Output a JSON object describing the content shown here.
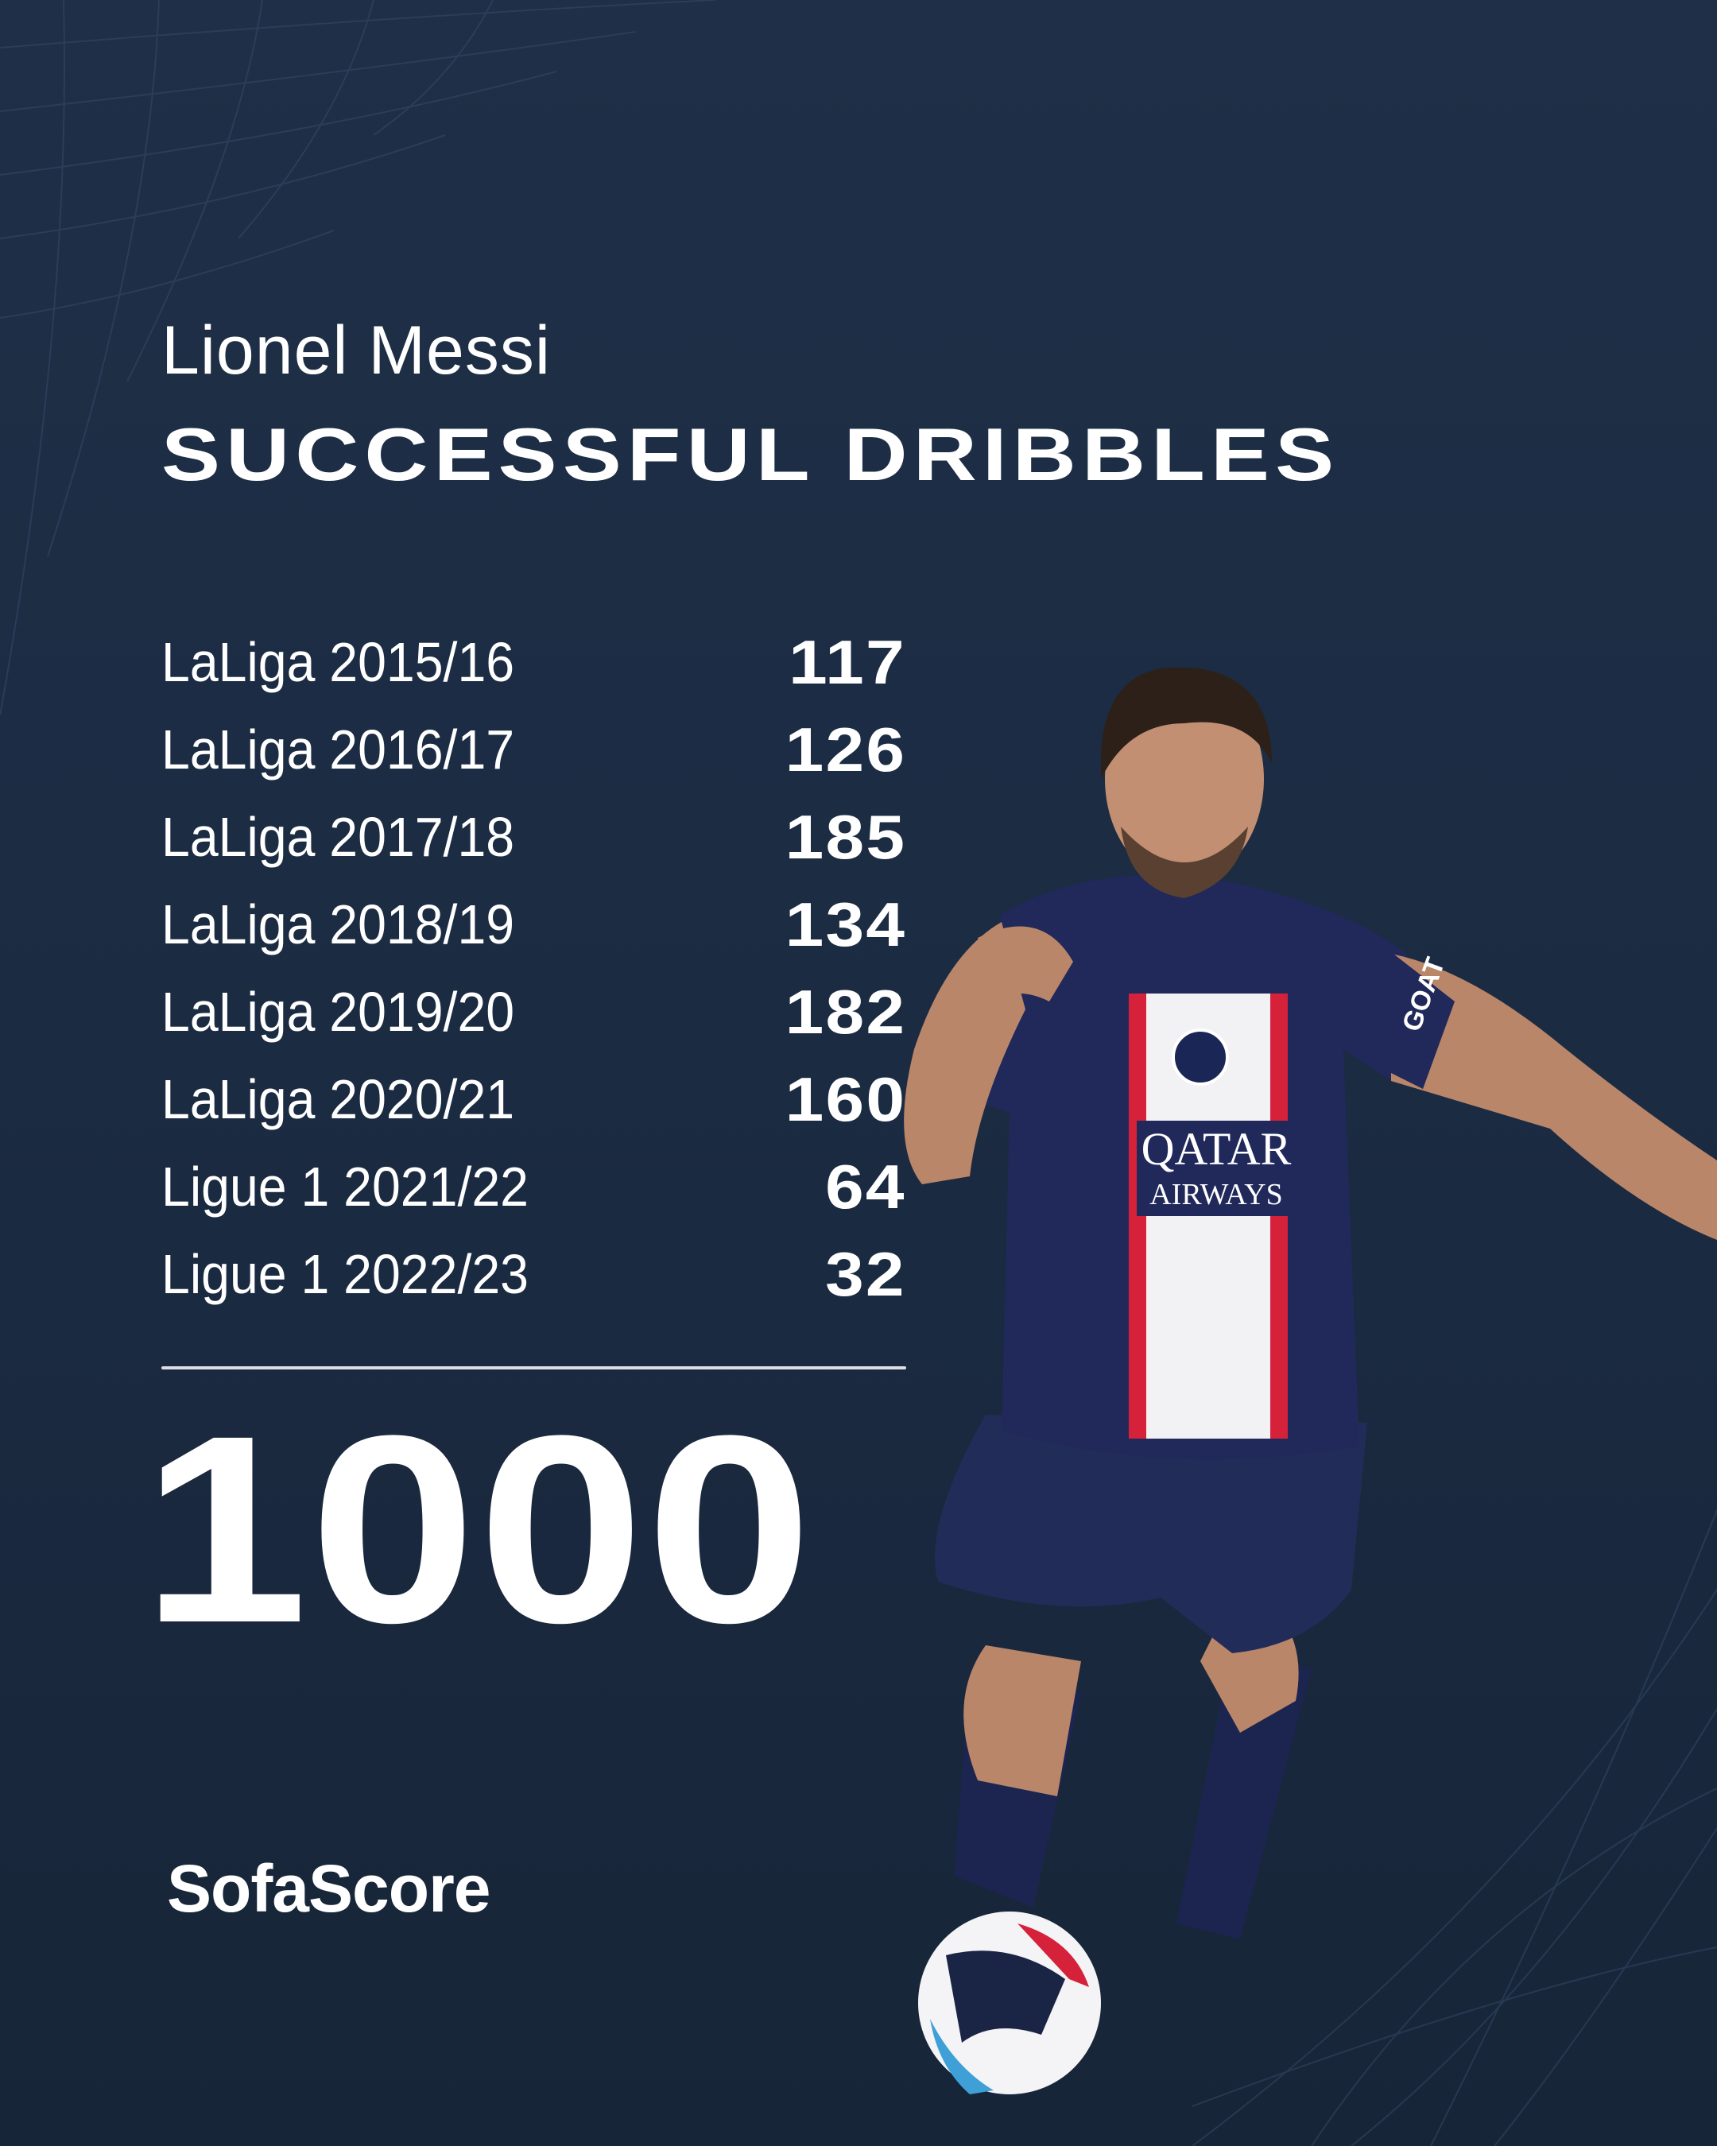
{
  "player": {
    "name": "Lionel Messi"
  },
  "stat": {
    "title": "SUCCESSFUL DRIBBLES"
  },
  "seasons": [
    {
      "label": "LaLiga 2015/16",
      "value": "117"
    },
    {
      "label": "LaLiga 2016/17",
      "value": "126"
    },
    {
      "label": "LaLiga 2017/18",
      "value": "185"
    },
    {
      "label": "LaLiga 2018/19",
      "value": "134"
    },
    {
      "label": "LaLiga 2019/20",
      "value": "182"
    },
    {
      "label": "LaLiga 2020/21",
      "value": "160"
    },
    {
      "label": "Ligue 1 2021/22",
      "value": "64"
    },
    {
      "label": "Ligue 1 2022/23",
      "value": "32"
    }
  ],
  "total": "1000",
  "brand": {
    "logo_text": "SofaScore"
  },
  "photo": {
    "sponsor_text": "QATAR AIRWAYS",
    "sleeve_text": "GOAT"
  },
  "colors": {
    "background": "#1c2d44",
    "text": "#ffffff",
    "divider": "#dcdfe4",
    "jersey": "#1f2a55",
    "stripe_red": "#d6213a"
  }
}
